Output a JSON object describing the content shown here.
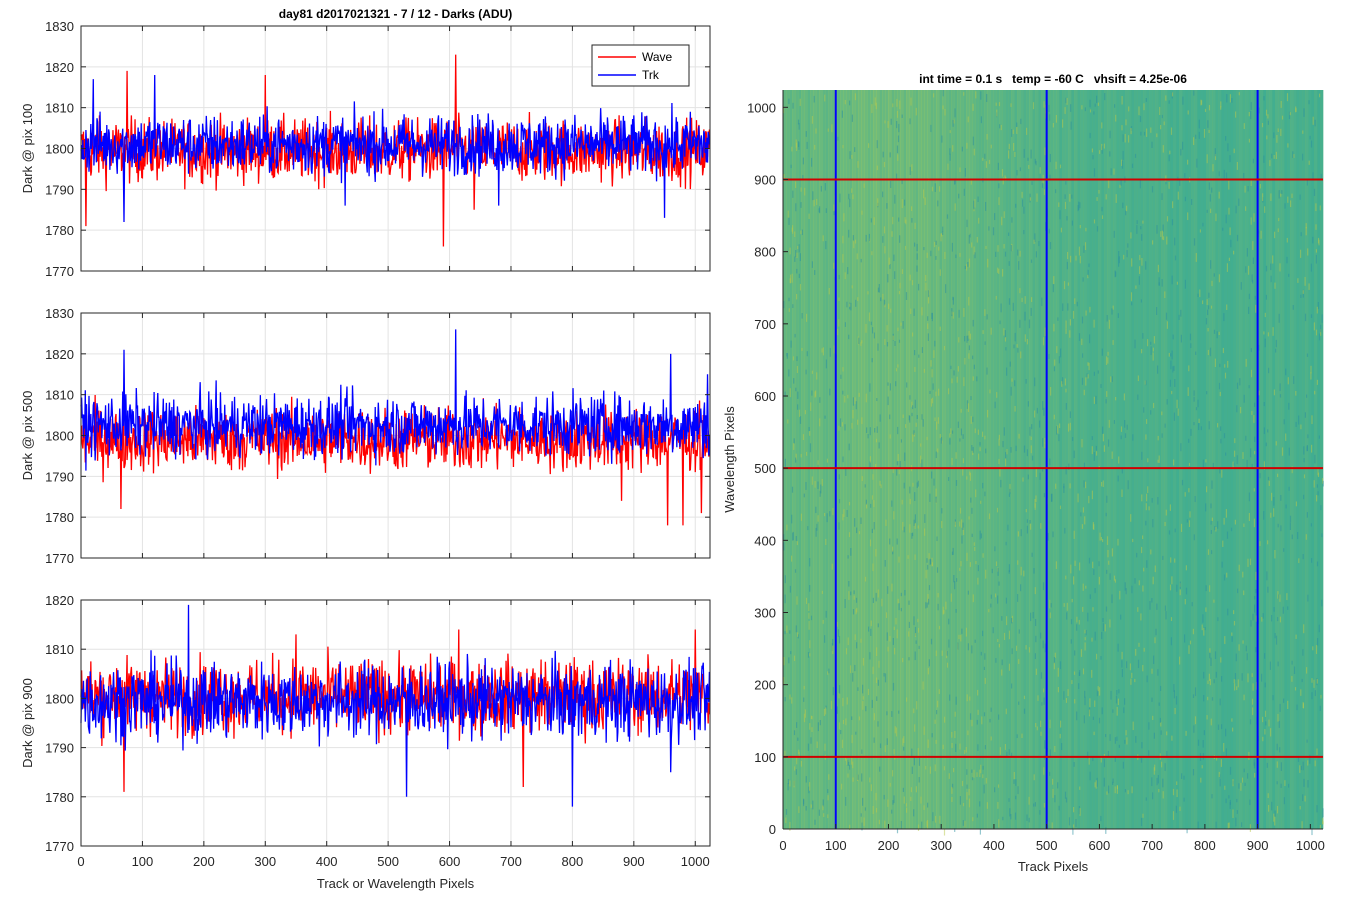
{
  "chart_data": [
    {
      "type": "line",
      "title": "day81 d2017021321 - 7 / 12 - Darks (ADU)",
      "xlabel": "",
      "ylabel": "Dark @ pix 100",
      "xlim": [
        0,
        1024
      ],
      "ylim": [
        1770,
        1830
      ],
      "xticks": [
        0,
        100,
        200,
        300,
        400,
        500,
        600,
        700,
        800,
        900,
        1000
      ],
      "yticks": [
        1770,
        1780,
        1790,
        1800,
        1810,
        1820,
        1830
      ],
      "grid": true,
      "legend": "top-right",
      "series": [
        {
          "name": "Wave",
          "color": "#ff0000",
          "mean": 1799.5,
          "std": 4.5,
          "n": 1024,
          "spikes": [
            [
              8,
              1781
            ],
            [
              590,
              1776
            ],
            [
              610,
              1823
            ],
            [
              75,
              1819
            ],
            [
              300,
              1818
            ],
            [
              640,
              1785
            ]
          ]
        },
        {
          "name": "Trk",
          "color": "#0000ff",
          "mean": 1801.0,
          "std": 4.3,
          "n": 1024,
          "spikes": [
            [
              20,
              1817
            ],
            [
              70,
              1782
            ],
            [
              120,
              1818
            ],
            [
              430,
              1786
            ],
            [
              680,
              1786
            ],
            [
              950,
              1783
            ]
          ]
        }
      ]
    },
    {
      "type": "line",
      "title": "",
      "xlabel": "",
      "ylabel": "Dark @ pix 500",
      "xlim": [
        0,
        1024
      ],
      "ylim": [
        1770,
        1830
      ],
      "xticks": [
        0,
        100,
        200,
        300,
        400,
        500,
        600,
        700,
        800,
        900,
        1000
      ],
      "yticks": [
        1770,
        1780,
        1790,
        1800,
        1810,
        1820,
        1830
      ],
      "grid": true,
      "series": [
        {
          "name": "Wave",
          "color": "#ff0000",
          "mean": 1799.0,
          "std": 4.6,
          "n": 1024,
          "spikes": [
            [
              65,
              1782
            ],
            [
              955,
              1778
            ],
            [
              980,
              1778
            ],
            [
              1010,
              1781
            ],
            [
              880,
              1784
            ]
          ]
        },
        {
          "name": "Trk",
          "color": "#0000ff",
          "mean": 1802.5,
          "std": 4.4,
          "n": 1024,
          "spikes": [
            [
              70,
              1821
            ],
            [
              610,
              1826
            ],
            [
              960,
              1820
            ],
            [
              1020,
              1815
            ]
          ]
        }
      ]
    },
    {
      "type": "line",
      "title": "",
      "xlabel": "Track or Wavelength Pixels",
      "ylabel": "Dark @ pix 900",
      "xlim": [
        0,
        1024
      ],
      "ylim": [
        1770,
        1820
      ],
      "xticks": [
        0,
        100,
        200,
        300,
        400,
        500,
        600,
        700,
        800,
        900,
        1000
      ],
      "yticks": [
        1770,
        1780,
        1790,
        1800,
        1810,
        1820
      ],
      "grid": true,
      "series": [
        {
          "name": "Wave",
          "color": "#ff0000",
          "mean": 1800.5,
          "std": 4.4,
          "n": 1024,
          "spikes": [
            [
              70,
              1781
            ],
            [
              615,
              1814
            ],
            [
              1000,
              1814
            ],
            [
              350,
              1813
            ],
            [
              720,
              1782
            ]
          ]
        },
        {
          "name": "Trk",
          "color": "#0000ff",
          "mean": 1799.5,
          "std": 4.5,
          "n": 1024,
          "spikes": [
            [
              175,
              1819
            ],
            [
              530,
              1780
            ],
            [
              800,
              1778
            ],
            [
              960,
              1785
            ]
          ]
        }
      ]
    },
    {
      "type": "heatmap",
      "title": "int time = 0.1 s   temp = -60 C   vhsift = 4.25e-06",
      "xlabel": "Track Pixels",
      "ylabel": "Wavelength Pixels",
      "xlim": [
        0,
        1024
      ],
      "ylim": [
        0,
        1024
      ],
      "xticks": [
        0,
        100,
        200,
        300,
        400,
        500,
        600,
        700,
        800,
        900,
        1000
      ],
      "yticks": [
        0,
        100,
        200,
        300,
        400,
        500,
        600,
        700,
        800,
        900,
        1000
      ],
      "colormap": "parula",
      "vertical_markers": {
        "values": [
          100,
          500,
          900
        ],
        "color": "#0000ff"
      },
      "horizontal_markers": {
        "values": [
          100,
          500,
          900
        ],
        "color": "#d00000"
      }
    }
  ]
}
